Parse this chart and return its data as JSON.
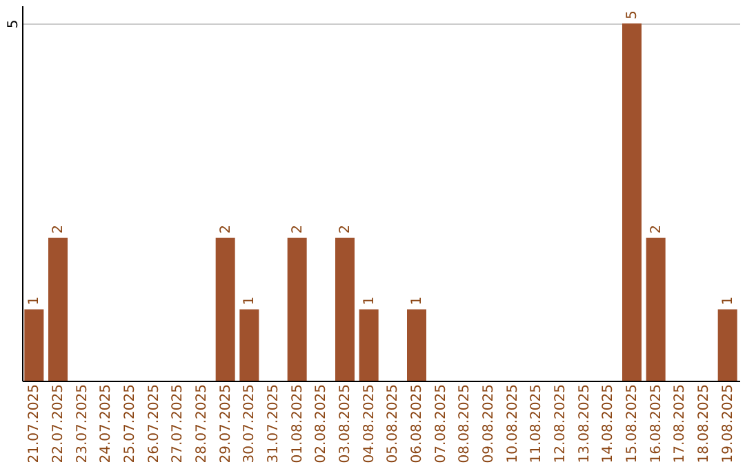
{
  "chart_data": {
    "type": "bar",
    "categories": [
      "21.07.2025",
      "22.07.2025",
      "23.07.2025",
      "24.07.2025",
      "25.07.2025",
      "26.07.2025",
      "27.07.2025",
      "28.07.2025",
      "29.07.2025",
      "30.07.2025",
      "31.07.2025",
      "01.08.2025",
      "02.08.2025",
      "03.08.2025",
      "04.08.2025",
      "05.08.2025",
      "06.08.2025",
      "07.08.2025",
      "08.08.2025",
      "09.08.2025",
      "10.08.2025",
      "11.08.2025",
      "12.08.2025",
      "13.08.2025",
      "14.08.2025",
      "15.08.2025",
      "16.08.2025",
      "17.08.2025",
      "18.08.2025",
      "19.08.2025"
    ],
    "values": [
      1,
      2,
      null,
      null,
      null,
      null,
      null,
      null,
      2,
      1,
      null,
      2,
      null,
      2,
      1,
      null,
      1,
      null,
      null,
      null,
      null,
      null,
      null,
      null,
      null,
      5,
      2,
      null,
      null,
      1
    ],
    "color": "#a0522d",
    "ylim": [
      0,
      5.25
    ],
    "yticks": [
      5
    ],
    "grid": "y",
    "data_labels": true
  }
}
